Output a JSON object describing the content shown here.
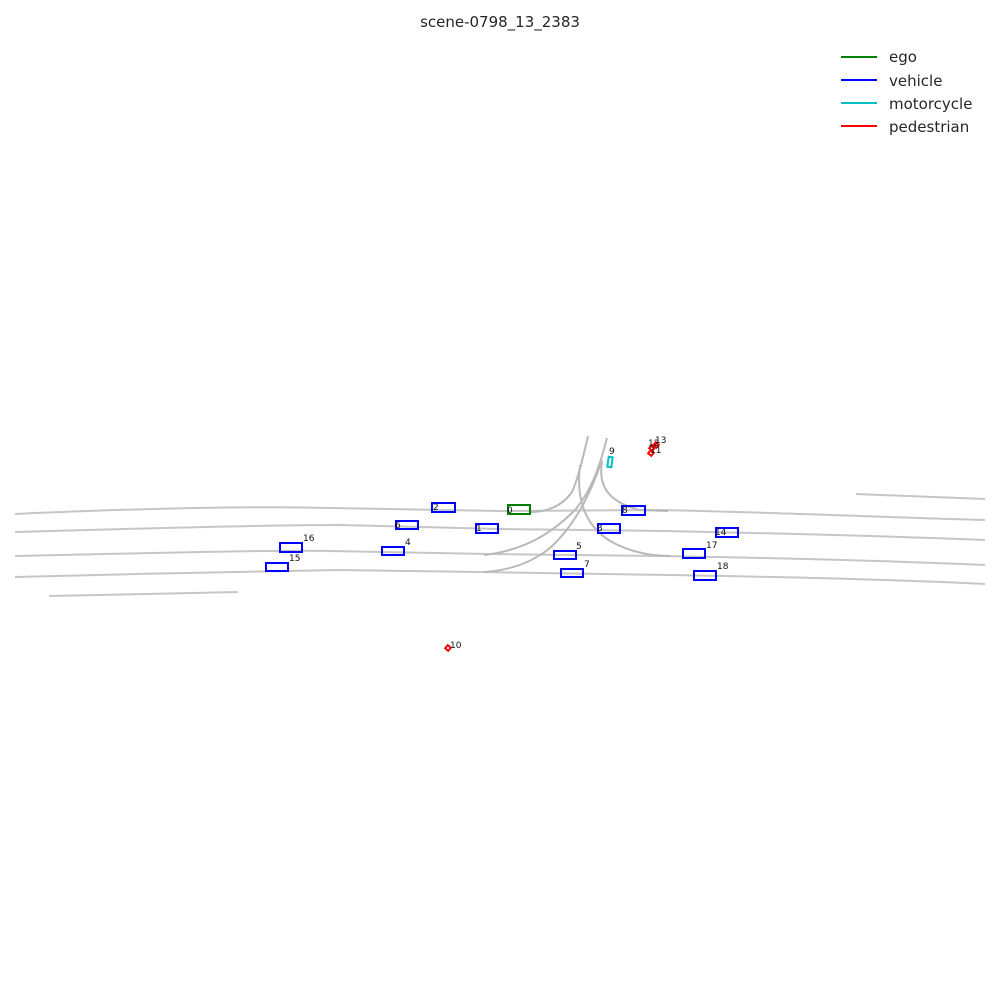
{
  "title": "scene-0798_13_2383",
  "colors": {
    "ego": "#008000",
    "vehicle": "#0000ff",
    "motorcycle": "#00bfbf",
    "pedestrian": "#ff0000",
    "lane": "#c6c6c6"
  },
  "legend": [
    {
      "label": "ego",
      "category": "ego"
    },
    {
      "label": "vehicle",
      "category": "vehicle"
    },
    {
      "label": "motorcycle",
      "category": "motorcycle"
    },
    {
      "label": "pedestrian",
      "category": "pedestrian"
    }
  ],
  "agents": [
    {
      "id": "0",
      "category": "ego"
    },
    {
      "id": "1",
      "category": "vehicle"
    },
    {
      "id": "2",
      "category": "vehicle"
    },
    {
      "id": "3",
      "category": "vehicle"
    },
    {
      "id": "4",
      "category": "vehicle"
    },
    {
      "id": "5",
      "category": "vehicle"
    },
    {
      "id": "6",
      "category": "vehicle"
    },
    {
      "id": "7",
      "category": "vehicle"
    },
    {
      "id": "8",
      "category": "vehicle"
    },
    {
      "id": "9",
      "category": "motorcycle"
    },
    {
      "id": "10",
      "category": "pedestrian"
    },
    {
      "id": "11",
      "category": "pedestrian"
    },
    {
      "id": "12",
      "category": "pedestrian"
    },
    {
      "id": "13",
      "category": "pedestrian"
    },
    {
      "id": "14",
      "category": "vehicle"
    },
    {
      "id": "15",
      "category": "vehicle"
    },
    {
      "id": "16",
      "category": "vehicle"
    },
    {
      "id": "17",
      "category": "vehicle"
    },
    {
      "id": "18",
      "category": "vehicle"
    }
  ]
}
